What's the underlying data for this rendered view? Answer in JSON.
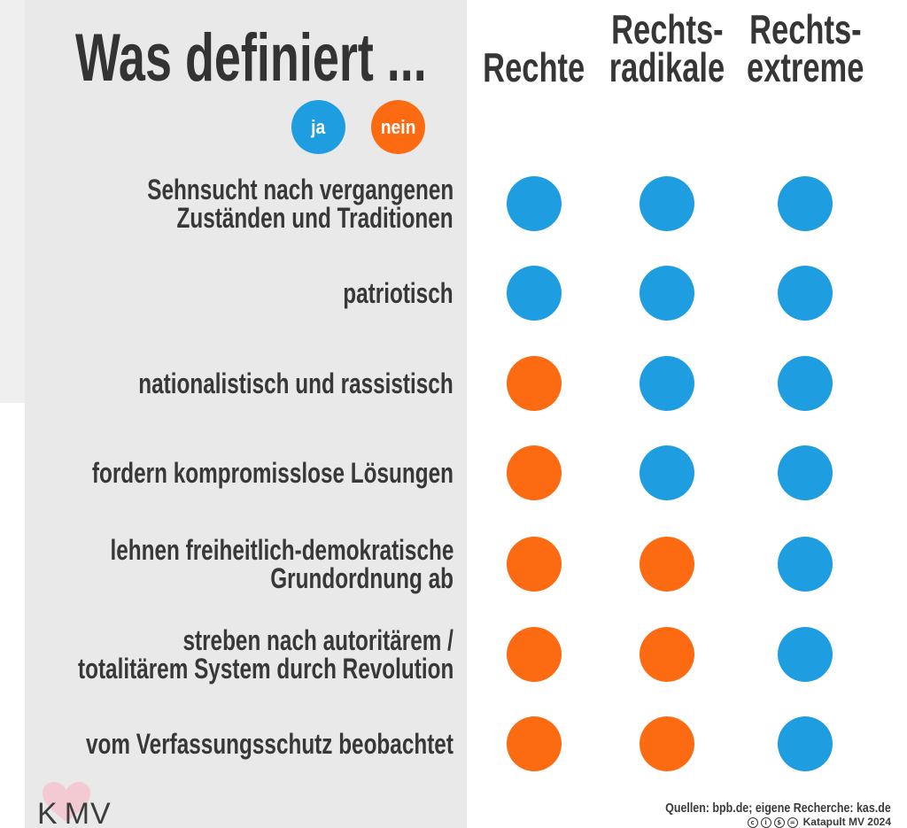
{
  "chart_data": {
    "type": "table",
    "title": "Was definiert ...",
    "legend_position": "below-title",
    "legend": [
      {
        "label": "ja",
        "value": true,
        "color": "#1e9de0"
      },
      {
        "label": "nein",
        "value": false,
        "color": "#fc6b12"
      }
    ],
    "columns": [
      {
        "lines": [
          "Rechte"
        ]
      },
      {
        "lines": [
          "Rechts-",
          "radikale"
        ]
      },
      {
        "lines": [
          "Rechts-",
          "extreme"
        ]
      }
    ],
    "rows": [
      {
        "lines": [
          "Sehnsucht nach vergangenen",
          "Zuständen und Traditionen"
        ],
        "values": [
          true,
          true,
          true
        ]
      },
      {
        "lines": [
          "patriotisch"
        ],
        "values": [
          true,
          true,
          true
        ]
      },
      {
        "lines": [
          "nationalistisch und rassistisch"
        ],
        "values": [
          false,
          true,
          true
        ]
      },
      {
        "lines": [
          "fordern kompromisslose Lösungen"
        ],
        "values": [
          false,
          true,
          true
        ]
      },
      {
        "lines": [
          "lehnen freiheitlich-demokratische",
          "Grundordnung ab"
        ],
        "values": [
          false,
          false,
          true
        ]
      },
      {
        "lines": [
          "streben nach autoritärem /",
          "totalitärem System durch Revolution"
        ],
        "values": [
          false,
          false,
          true
        ]
      },
      {
        "lines": [
          "vom Verfassungsschutz beobachtet"
        ],
        "values": [
          false,
          false,
          true
        ]
      }
    ]
  },
  "footer": {
    "sources": "Quellen: bpb.de; eigene Recherche: kas.de",
    "license_icons": [
      "cc-icon",
      "by-icon",
      "nc-icon",
      "nd-icon"
    ],
    "credit": "Katapult MV 2024"
  },
  "logo": {
    "parts": [
      "K",
      "MV"
    ],
    "heart_color": "#f5c4cd"
  }
}
